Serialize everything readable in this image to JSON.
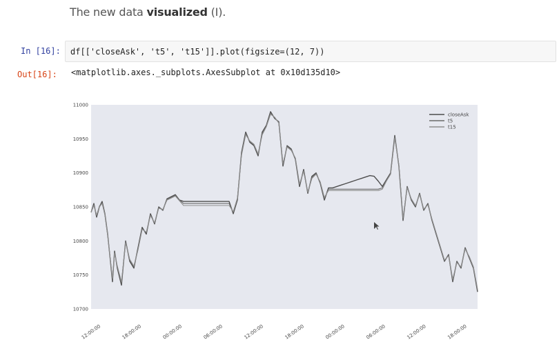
{
  "heading": {
    "plain": "The new data ",
    "bold": "visualized",
    "suffix": " (I)."
  },
  "cells": {
    "input_prompt": "In [16]:",
    "input_code": "df[['closeAsk', 't5', 't15']].plot(figsize=(12, 7))",
    "output_prompt": "Out[16]:",
    "output_text": "<matplotlib.axes._subplots.AxesSubplot at 0x10d135d10>"
  },
  "chart_data": {
    "type": "line",
    "title": "",
    "xlabel": "",
    "ylabel": "",
    "ylim": [
      10700,
      11000
    ],
    "yticks": [
      10700,
      10750,
      10800,
      10850,
      10900,
      10950,
      11000
    ],
    "xticks": [
      "12:00:00",
      "18:00:00",
      "00:00:00",
      "06:00:00",
      "12:00:00",
      "18:00:00",
      "00:00:00",
      "06:00:00",
      "12:00:00",
      "18:00:00"
    ],
    "x_index": [
      0,
      4,
      8,
      12,
      16,
      20,
      24,
      28,
      31,
      34,
      38,
      44,
      50,
      56,
      62,
      68,
      74,
      80,
      86,
      92,
      98,
      104,
      110,
      116,
      122,
      128,
      134,
      140,
      146,
      152,
      158,
      164,
      170,
      176,
      182,
      188,
      194,
      200,
      206,
      212,
      218,
      224,
      230,
      236,
      242,
      248,
      254,
      260,
      266,
      272,
      278,
      284,
      290,
      296,
      302,
      308,
      314,
      320,
      326,
      332,
      338,
      344,
      350,
      356,
      362,
      368,
      374,
      380,
      386,
      392,
      398,
      404,
      410,
      416,
      422,
      428,
      434,
      440,
      446,
      452,
      458,
      464,
      470,
      476,
      482,
      488,
      494,
      500,
      506,
      512,
      518,
      524,
      530,
      536,
      542,
      548,
      554,
      560
    ],
    "series": [
      {
        "name": "closeAsk",
        "color": "#4c4c4c",
        "values": [
          10842,
          10855,
          10835,
          10850,
          10858,
          10840,
          10810,
          10770,
          10740,
          10785,
          10760,
          10735,
          10800,
          10770,
          10760,
          10790,
          10820,
          10810,
          10840,
          10825,
          10850,
          10845,
          10862,
          10865,
          10868,
          10860,
          10858,
          10858,
          10858,
          10858,
          10858,
          10858,
          10858,
          10858,
          10858,
          10858,
          10858,
          10858,
          10840,
          10860,
          10930,
          10960,
          10945,
          10940,
          10925,
          10960,
          10970,
          10990,
          10980,
          10975,
          10910,
          10940,
          10935,
          10920,
          10880,
          10905,
          10870,
          10895,
          10900,
          10885,
          10860,
          10878,
          10878,
          10880,
          10882,
          10884,
          10886,
          10888,
          10890,
          10892,
          10894,
          10896,
          10895,
          10888,
          10880,
          10890,
          10900,
          10955,
          10910,
          10830,
          10880,
          10860,
          10850,
          10870,
          10845,
          10855,
          10830,
          10810,
          10790,
          10770,
          10780,
          10740,
          10770,
          10760,
          10790,
          10775,
          10760,
          10725
        ]
      },
      {
        "name": "t5",
        "color": "#6a6a6a",
        "values": [
          10842,
          10853,
          10837,
          10851,
          10856,
          10838,
          10808,
          10771,
          10743,
          10783,
          10762,
          10738,
          10799,
          10772,
          10762,
          10788,
          10818,
          10812,
          10838,
          10826,
          10849,
          10846,
          10861,
          10864,
          10867,
          10860,
          10855,
          10855,
          10855,
          10855,
          10855,
          10855,
          10855,
          10855,
          10855,
          10855,
          10855,
          10855,
          10842,
          10862,
          10928,
          10958,
          10946,
          10941,
          10927,
          10958,
          10969,
          10988,
          10981,
          10974,
          10912,
          10939,
          10934,
          10921,
          10882,
          10903,
          10871,
          10893,
          10899,
          10886,
          10862,
          10876,
          10876,
          10876,
          10876,
          10876,
          10876,
          10876,
          10876,
          10876,
          10876,
          10876,
          10876,
          10876,
          10878,
          10889,
          10899,
          10953,
          10911,
          10832,
          10879,
          10861,
          10851,
          10869,
          10846,
          10854,
          10831,
          10811,
          10791,
          10771,
          10779,
          10742,
          10769,
          10761,
          10789,
          10776,
          10761,
          10727
        ]
      },
      {
        "name": "t15",
        "color": "#8e8e8e",
        "values": [
          10842,
          10852,
          10838,
          10850,
          10855,
          10839,
          10809,
          10772,
          10745,
          10782,
          10763,
          10740,
          10797,
          10773,
          10763,
          10787,
          10817,
          10813,
          10837,
          10827,
          10848,
          10846,
          10860,
          10863,
          10866,
          10859,
          10852,
          10852,
          10852,
          10852,
          10852,
          10852,
          10852,
          10852,
          10852,
          10852,
          10852,
          10852,
          10843,
          10863,
          10926,
          10956,
          10947,
          10942,
          10928,
          10956,
          10968,
          10986,
          10982,
          10973,
          10914,
          10938,
          10933,
          10922,
          10884,
          10902,
          10872,
          10892,
          10898,
          10887,
          10864,
          10874,
          10874,
          10874,
          10874,
          10874,
          10874,
          10874,
          10874,
          10874,
          10874,
          10874,
          10874,
          10874,
          10876,
          10888,
          10898,
          10951,
          10912,
          10834,
          10878,
          10862,
          10852,
          10868,
          10847,
          10853,
          10832,
          10812,
          10792,
          10772,
          10778,
          10744,
          10768,
          10762,
          10788,
          10777,
          10762,
          10729
        ]
      }
    ],
    "legend": {
      "position": "top-right"
    },
    "grid": false,
    "background": "#e6e8ef"
  }
}
